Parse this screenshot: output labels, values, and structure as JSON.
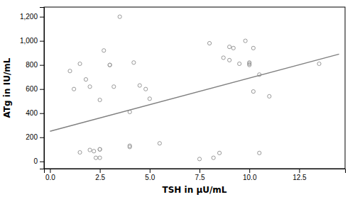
{
  "chart_data": {
    "type": "scatter",
    "xlabel": "TSH in μU/mL",
    "ylabel": "ATg in IU/mL",
    "series": [
      {
        "type": "scatter",
        "marker": "circle",
        "color": "#999999",
        "x": [
          1.0,
          1.2,
          1.5,
          1.5,
          1.8,
          2.0,
          2.0,
          2.2,
          2.3,
          2.5,
          2.5,
          2.5,
          2.5,
          2.7,
          3.0,
          3.0,
          3.2,
          3.5,
          4.0,
          4.0,
          4.0,
          4.2,
          4.5,
          4.8,
          5.0,
          5.5,
          7.5,
          8.0,
          8.2,
          8.5,
          8.7,
          9.0,
          9.0,
          9.2,
          9.5,
          9.8,
          10.0,
          10.0,
          10.0,
          10.2,
          10.2,
          10.5,
          10.5,
          11.0,
          13.5
        ],
        "values": [
          750,
          600,
          810,
          75,
          680,
          620,
          95,
          85,
          30,
          30,
          100,
          510,
          100,
          920,
          800,
          800,
          620,
          1200,
          410,
          130,
          120,
          820,
          630,
          600,
          520,
          150,
          20,
          980,
          30,
          70,
          860,
          950,
          840,
          940,
          810,
          1000,
          820,
          810,
          800,
          940,
          580,
          720,
          70,
          540,
          810
        ]
      },
      {
        "type": "line",
        "line_style": "solid",
        "color": "#808080",
        "x": [
          0.0,
          14.5
        ],
        "values": [
          250,
          890
        ]
      }
    ],
    "xlim": [
      -0.3,
      14.8
    ],
    "ylim": [
      -60,
      1280
    ],
    "xticks": [
      {
        "value": 0,
        "label": "0.0"
      },
      2.5,
      {
        "value": 5,
        "label": "5.0"
      },
      7.5,
      {
        "value": 10,
        "label": "10.0"
      },
      12.5
    ],
    "yticks": [
      0,
      200,
      400,
      600,
      800,
      {
        "value": 1000,
        "label": "1,000"
      },
      {
        "value": 1200,
        "label": "1,200"
      }
    ],
    "grid": false
  }
}
